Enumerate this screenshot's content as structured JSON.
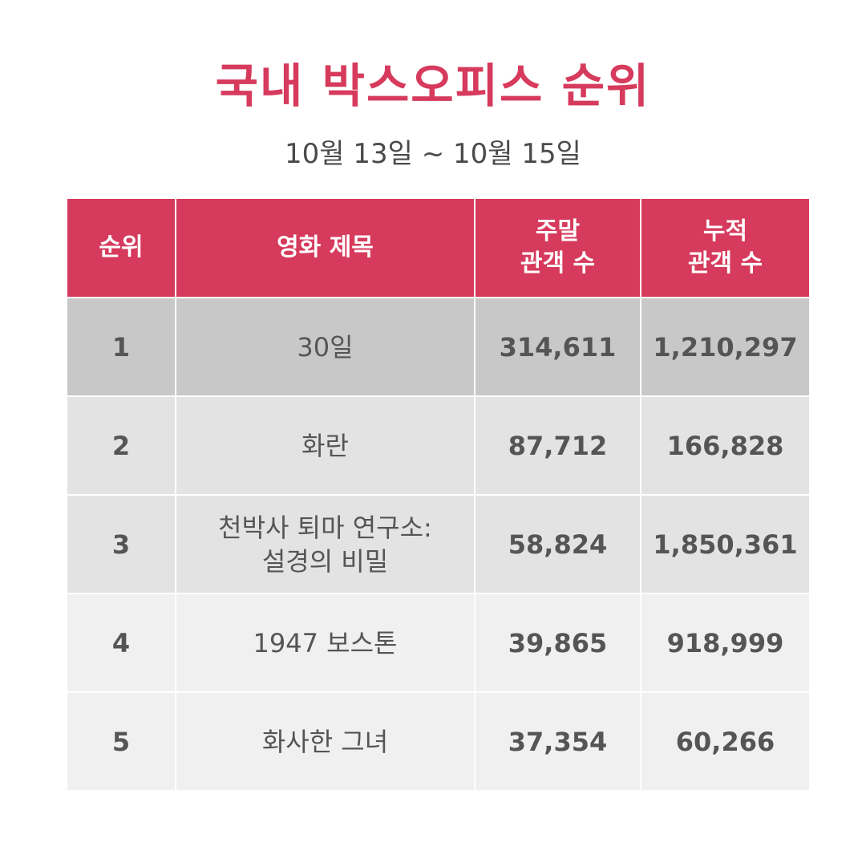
{
  "header": {
    "title": "국내 박스오피스 순위",
    "subtitle": "10월 13일 ~ 10월 15일"
  },
  "table": {
    "columns": [
      {
        "lines": [
          "순위"
        ]
      },
      {
        "lines": [
          "영화 제목"
        ]
      },
      {
        "lines": [
          "주말",
          "관객 수"
        ]
      },
      {
        "lines": [
          "누적",
          "관객 수"
        ]
      }
    ],
    "rows": [
      {
        "rank": "1",
        "title_lines": [
          "30일"
        ],
        "weekend": "314,611",
        "total": "1,210,297"
      },
      {
        "rank": "2",
        "title_lines": [
          "화란"
        ],
        "weekend": "87,712",
        "total": "166,828"
      },
      {
        "rank": "3",
        "title_lines": [
          "천박사 퇴마 연구소:",
          "설경의 비밀"
        ],
        "weekend": "58,824",
        "total": "1,850,361"
      },
      {
        "rank": "4",
        "title_lines": [
          "1947 보스톤"
        ],
        "weekend": "39,865",
        "total": "918,999"
      },
      {
        "rank": "5",
        "title_lines": [
          "화사한 그녀"
        ],
        "weekend": "37,354",
        "total": "60,266"
      }
    ]
  },
  "colors": {
    "accent": "#d63a5c",
    "row_highlight": "#c8c8c8",
    "row_mid": "#e3e3e3",
    "row_light": "#f0f0f0",
    "text": "#555555"
  }
}
